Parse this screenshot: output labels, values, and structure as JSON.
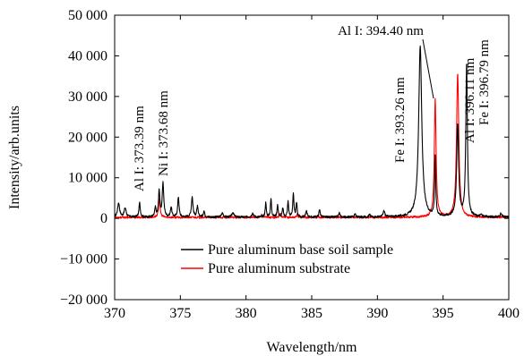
{
  "chart_data": {
    "type": "line",
    "xlabel": "Wavelength/nm",
    "ylabel": "Intensity/arb.units",
    "xlim": [
      370,
      400
    ],
    "ylim": [
      -20000,
      50000
    ],
    "x_ticks": [
      370,
      375,
      380,
      385,
      390,
      395,
      400
    ],
    "y_ticks": [
      -20000,
      -10000,
      0,
      10000,
      20000,
      30000,
      40000,
      50000
    ],
    "x_tick_labels": [
      "370",
      "375",
      "380",
      "385",
      "390",
      "395",
      "400"
    ],
    "y_tick_labels": [
      "−20 000",
      "−10 000",
      "0",
      "10 000",
      "20 000",
      "30 000",
      "40 000",
      "50 000"
    ],
    "grid": false,
    "legend_position": "bottom-center",
    "series": [
      {
        "name": "Pure aluminum base soil sample",
        "color": "#000000",
        "baseline": 300,
        "peaks": [
          [
            370.3,
            3500,
            0.09
          ],
          [
            370.8,
            2200,
            0.09
          ],
          [
            371.9,
            3500,
            0.06
          ],
          [
            373.1,
            2200,
            0.06
          ],
          [
            373.39,
            6500,
            0.06
          ],
          [
            373.68,
            8200,
            0.07
          ],
          [
            374.3,
            2500,
            0.06
          ],
          [
            374.85,
            5000,
            0.06
          ],
          [
            375.9,
            5000,
            0.07
          ],
          [
            376.3,
            2500,
            0.06
          ],
          [
            376.8,
            1500,
            0.06
          ],
          [
            378.2,
            1000,
            0.08
          ],
          [
            379.0,
            1200,
            0.08
          ],
          [
            380.5,
            1000,
            0.08
          ],
          [
            381.5,
            3500,
            0.05
          ],
          [
            381.9,
            4500,
            0.05
          ],
          [
            382.4,
            3000,
            0.05
          ],
          [
            382.8,
            2200,
            0.05
          ],
          [
            383.2,
            3800,
            0.05
          ],
          [
            383.6,
            5800,
            0.05
          ],
          [
            383.85,
            3500,
            0.05
          ],
          [
            384.6,
            1500,
            0.06
          ],
          [
            385.6,
            1800,
            0.06
          ],
          [
            387.1,
            1000,
            0.06
          ],
          [
            388.3,
            800,
            0.06
          ],
          [
            389.4,
            600,
            0.06
          ],
          [
            390.5,
            1500,
            0.07
          ],
          [
            393.26,
            42000,
            0.14
          ],
          [
            394.4,
            14500,
            0.05
          ],
          [
            396.11,
            22500,
            0.09
          ],
          [
            396.79,
            38000,
            0.07
          ],
          [
            397.9,
            500,
            0.08
          ],
          [
            399.4,
            800,
            0.08
          ]
        ]
      },
      {
        "name": "Pure aluminum substrate",
        "color": "#ff0000",
        "baseline": 250,
        "peaks": [
          [
            373.4,
            4500,
            0.07
          ],
          [
            381.2,
            700,
            0.06
          ],
          [
            382.6,
            900,
            0.06
          ],
          [
            383.9,
            700,
            0.06
          ],
          [
            394.4,
            29000,
            0.08
          ],
          [
            396.11,
            35500,
            0.1
          ]
        ]
      }
    ],
    "annotations": [
      {
        "text": "Al I: 373.39 nm",
        "x": 373.39,
        "orientation": "vertical"
      },
      {
        "text": "Ni I: 373.68 nm",
        "x": 373.68,
        "orientation": "vertical"
      },
      {
        "text": "Fe I: 393.26 nm",
        "x": 393.26,
        "orientation": "vertical"
      },
      {
        "text": "Al I: 394.40 nm",
        "x": 394.4,
        "orientation": "horizontal"
      },
      {
        "text": "Al I: 396.11 nm",
        "x": 396.11,
        "orientation": "vertical"
      },
      {
        "text": "Fe I: 396.79 nm",
        "x": 396.79,
        "orientation": "vertical"
      }
    ]
  }
}
